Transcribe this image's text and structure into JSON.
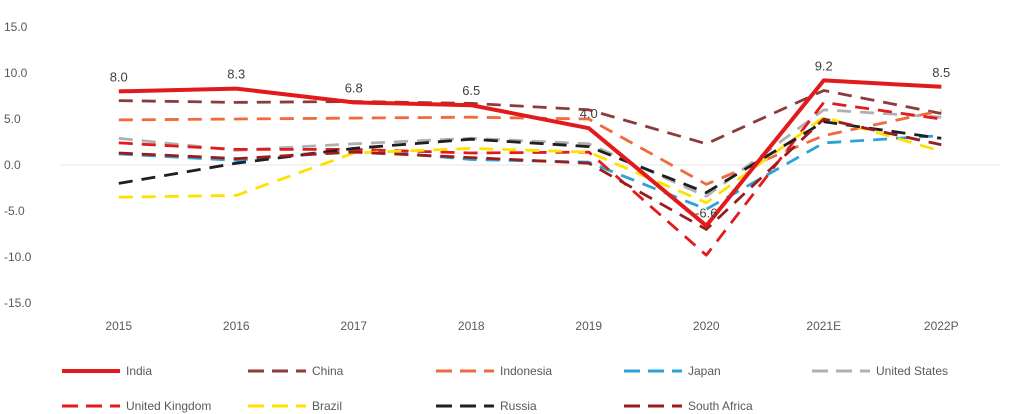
{
  "chart_data": {
    "type": "line",
    "categories": [
      "2015",
      "2016",
      "2017",
      "2018",
      "2019",
      "2020",
      "2021E",
      "2022P"
    ],
    "y_ticks": [
      "15.0",
      "10.0",
      "5.0",
      "0.0",
      "-5.0",
      "-10.0",
      "-15.0"
    ],
    "ylim": [
      -15,
      15
    ],
    "grid": false,
    "legend_position": "bottom",
    "series": [
      {
        "name": "India",
        "color": "#e31a1c",
        "dash": "solid",
        "values": [
          8.0,
          8.3,
          6.8,
          6.5,
          4.0,
          -6.6,
          9.2,
          8.5
        ],
        "labels": [
          "8.0",
          "8.3",
          "6.8",
          "6.5",
          "4.0",
          "-6.6",
          "9.2",
          "8.5"
        ]
      },
      {
        "name": "China",
        "color": "#8c3a3a",
        "dash": "dash",
        "values": [
          7.0,
          6.8,
          6.9,
          6.7,
          6.0,
          2.3,
          8.1,
          5.6
        ]
      },
      {
        "name": "Indonesia",
        "color": "#f06a3c",
        "dash": "dash",
        "values": [
          4.9,
          5.0,
          5.1,
          5.2,
          5.0,
          -2.1,
          3.2,
          5.9
        ]
      },
      {
        "name": "Japan",
        "color": "#2ba3d6",
        "dash": "dash",
        "values": [
          1.2,
          0.5,
          1.7,
          0.6,
          0.3,
          -4.8,
          2.4,
          3.2
        ]
      },
      {
        "name": "United States",
        "color": "#b0b0b0",
        "dash": "dash",
        "values": [
          2.9,
          1.6,
          2.3,
          2.9,
          2.3,
          -3.4,
          6.0,
          5.2
        ]
      },
      {
        "name": "United Kingdom",
        "color": "#e31a1c",
        "dash": "dash",
        "values": [
          2.4,
          1.7,
          1.7,
          1.3,
          1.4,
          -9.8,
          6.8,
          5.0
        ]
      },
      {
        "name": "Brazil",
        "color": "#ffe100",
        "dash": "dash",
        "values": [
          -3.5,
          -3.3,
          1.3,
          1.8,
          1.4,
          -4.1,
          5.2,
          1.5
        ]
      },
      {
        "name": "Russia",
        "color": "#1f1f1f",
        "dash": "dash",
        "values": [
          -2.0,
          0.2,
          1.8,
          2.8,
          2.0,
          -3.0,
          4.7,
          2.9
        ]
      },
      {
        "name": "South Africa",
        "color": "#9b1c1c",
        "dash": "dash",
        "values": [
          1.3,
          0.7,
          1.4,
          0.8,
          0.2,
          -7.0,
          5.0,
          2.2
        ]
      }
    ]
  }
}
